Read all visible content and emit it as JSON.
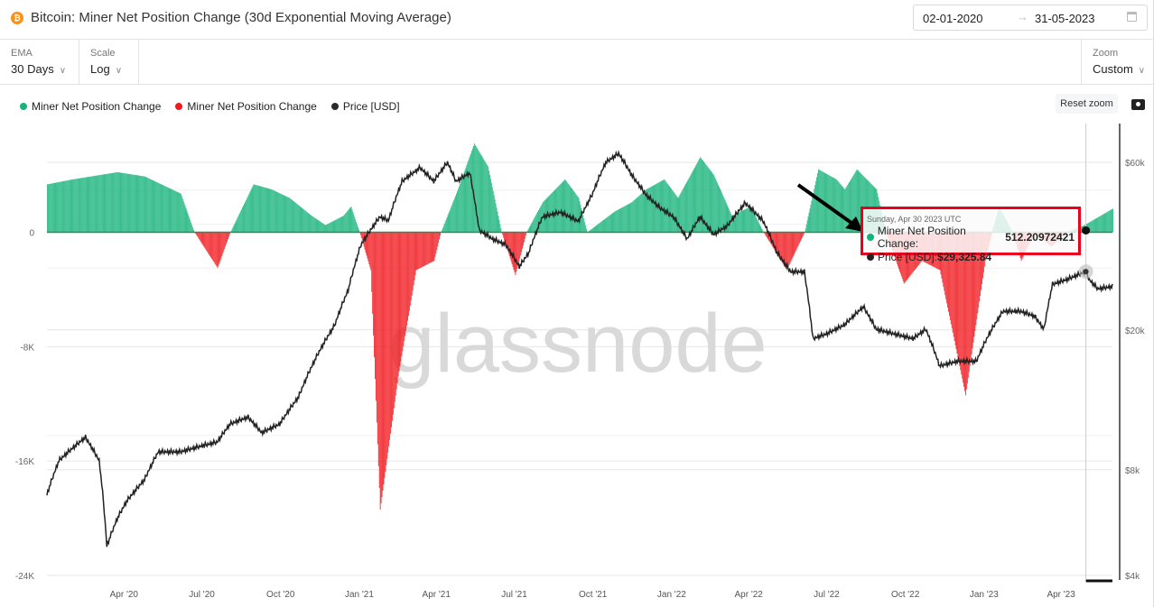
{
  "header": {
    "title": "Bitcoin: Miner Net Position Change (30d Exponential Moving Average)",
    "icon": "bitcoin-icon",
    "date_from": "02-01-2020",
    "date_arrow": "→",
    "date_to": "31-05-2023"
  },
  "controls": {
    "ema": {
      "label": "EMA",
      "value": "30 Days"
    },
    "scale": {
      "label": "Scale",
      "value": "Log"
    },
    "zoom": {
      "label": "Zoom",
      "value": "Custom"
    },
    "reset_zoom": "Reset zoom"
  },
  "legend": [
    {
      "label": "Miner Net Position Change",
      "color": "#16b37a"
    },
    {
      "label": "Miner Net Position Change",
      "color": "#f0191e"
    },
    {
      "label": "Price [USD]",
      "color": "#2b2b2b"
    }
  ],
  "watermark": "glassnode",
  "tooltip": {
    "date": "Sunday, Apr 30 2023 UTC",
    "series1_label": "Miner Net Position Change: ",
    "series1_value": "512.20972421",
    "series2_label": "Price [USD]: ",
    "series2_value": "$29,325.84"
  },
  "chart_data": {
    "type": "bar+line",
    "x_range": [
      "2020-01-02",
      "2023-05-31"
    ],
    "x_ticks": [
      {
        "date": "2020-04-01",
        "label": "Apr '20"
      },
      {
        "date": "2020-07-01",
        "label": "Jul '20"
      },
      {
        "date": "2020-10-01",
        "label": "Oct '20"
      },
      {
        "date": "2021-01-01",
        "label": "Jan '21"
      },
      {
        "date": "2021-04-01",
        "label": "Apr '21"
      },
      {
        "date": "2021-07-01",
        "label": "Jul '21"
      },
      {
        "date": "2021-10-01",
        "label": "Oct '21"
      },
      {
        "date": "2022-01-01",
        "label": "Jan '22"
      },
      {
        "date": "2022-04-01",
        "label": "Apr '22"
      },
      {
        "date": "2022-07-01",
        "label": "Jul '22"
      },
      {
        "date": "2022-10-01",
        "label": "Oct '22"
      },
      {
        "date": "2023-01-01",
        "label": "Jan '23"
      },
      {
        "date": "2023-04-01",
        "label": "Apr '23"
      }
    ],
    "left_axis": {
      "scale": "linear",
      "range": [
        -24000,
        7600
      ],
      "ticks": [
        {
          "v": 0,
          "label": "0"
        },
        {
          "v": -8000,
          "label": "-8K"
        },
        {
          "v": -16000,
          "label": "-16K"
        },
        {
          "v": -24000,
          "label": "-24K"
        }
      ]
    },
    "right_axis": {
      "scale": "log",
      "range": [
        4000,
        60000
      ],
      "ticks": [
        {
          "v": 60000,
          "label": "$60k"
        },
        {
          "v": 20000,
          "label": "$20k"
        },
        {
          "v": 8000,
          "label": "$8k"
        },
        {
          "v": 4000,
          "label": "$4k"
        }
      ]
    },
    "positive_color": "#16b37a",
    "negative_color": "#f0191e",
    "price_color": "#222222",
    "net_position_change": [
      [
        "2020-01-02",
        3350
      ],
      [
        "2020-02-01",
        3700
      ],
      [
        "2020-03-24",
        4200
      ],
      [
        "2020-04-25",
        3900
      ],
      [
        "2020-06-06",
        2700
      ],
      [
        "2020-06-22",
        0
      ],
      [
        "2020-07-19",
        -2500
      ],
      [
        "2020-08-03",
        0
      ],
      [
        "2020-08-30",
        3350
      ],
      [
        "2020-09-20",
        3000
      ],
      [
        "2020-10-11",
        2400
      ],
      [
        "2020-11-06",
        1150
      ],
      [
        "2020-11-22",
        500
      ],
      [
        "2020-12-13",
        1150
      ],
      [
        "2020-12-22",
        1800
      ],
      [
        "2021-01-01",
        0
      ],
      [
        "2021-01-14",
        -2650
      ],
      [
        "2021-01-25",
        -19400
      ],
      [
        "2021-02-15",
        -10100
      ],
      [
        "2021-03-08",
        -2650
      ],
      [
        "2021-03-29",
        -2000
      ],
      [
        "2021-04-06",
        0
      ],
      [
        "2021-04-24",
        2700
      ],
      [
        "2021-05-15",
        6200
      ],
      [
        "2021-05-31",
        4600
      ],
      [
        "2021-06-16",
        0
      ],
      [
        "2021-07-02",
        -3000
      ],
      [
        "2021-07-15",
        0
      ],
      [
        "2021-08-03",
        2100
      ],
      [
        "2021-08-29",
        3700
      ],
      [
        "2021-09-14",
        2400
      ],
      [
        "2021-09-24",
        0
      ],
      [
        "2021-10-05",
        500
      ],
      [
        "2021-10-26",
        1450
      ],
      [
        "2021-11-15",
        2100
      ],
      [
        "2021-12-02",
        3000
      ],
      [
        "2021-12-23",
        3700
      ],
      [
        "2022-01-08",
        2400
      ],
      [
        "2022-02-03",
        5250
      ],
      [
        "2022-02-19",
        4000
      ],
      [
        "2022-03-12",
        1150
      ],
      [
        "2022-04-03",
        1800
      ],
      [
        "2022-04-18",
        0
      ],
      [
        "2022-05-15",
        -2650
      ],
      [
        "2022-06-05",
        0
      ],
      [
        "2022-06-21",
        4400
      ],
      [
        "2022-07-12",
        3700
      ],
      [
        "2022-07-22",
        3000
      ],
      [
        "2022-08-05",
        4400
      ],
      [
        "2022-08-28",
        3000
      ],
      [
        "2022-09-08",
        0
      ],
      [
        "2022-09-29",
        -3600
      ],
      [
        "2022-10-20",
        -2000
      ],
      [
        "2022-11-10",
        -2650
      ],
      [
        "2022-12-10",
        -11400
      ],
      [
        "2023-01-02",
        -2000
      ],
      [
        "2023-01-10",
        0
      ],
      [
        "2023-01-18",
        1800
      ],
      [
        "2023-02-03",
        0
      ],
      [
        "2023-02-13",
        -2000
      ],
      [
        "2023-03-01",
        0
      ],
      [
        "2023-03-20",
        -1000
      ],
      [
        "2023-04-07",
        0
      ],
      [
        "2023-04-28",
        500
      ],
      [
        "2023-05-31",
        1650
      ]
    ],
    "price_usd": [
      [
        "2020-01-02",
        6800
      ],
      [
        "2020-01-16",
        8500
      ],
      [
        "2020-02-16",
        9900
      ],
      [
        "2020-03-03",
        8500
      ],
      [
        "2020-03-12",
        4850
      ],
      [
        "2020-03-24",
        5800
      ],
      [
        "2020-04-04",
        6500
      ],
      [
        "2020-04-25",
        7500
      ],
      [
        "2020-05-11",
        9000
      ],
      [
        "2020-06-06",
        9000
      ],
      [
        "2020-06-27",
        9300
      ],
      [
        "2020-07-19",
        9600
      ],
      [
        "2020-08-03",
        10800
      ],
      [
        "2020-08-24",
        11300
      ],
      [
        "2020-09-09",
        10200
      ],
      [
        "2020-09-30",
        10800
      ],
      [
        "2020-10-22",
        12900
      ],
      [
        "2020-11-12",
        16800
      ],
      [
        "2020-12-03",
        20600
      ],
      [
        "2020-12-19",
        26000
      ],
      [
        "2021-01-03",
        35000
      ],
      [
        "2021-01-25",
        42000
      ],
      [
        "2021-02-04",
        41000
      ],
      [
        "2021-02-20",
        53000
      ],
      [
        "2021-03-13",
        58000
      ],
      [
        "2021-03-29",
        53000
      ],
      [
        "2021-04-14",
        60000
      ],
      [
        "2021-04-24",
        53000
      ],
      [
        "2021-05-10",
        56000
      ],
      [
        "2021-05-21",
        38500
      ],
      [
        "2021-06-06",
        36300
      ],
      [
        "2021-06-21",
        35000
      ],
      [
        "2021-07-07",
        30300
      ],
      [
        "2021-07-18",
        33200
      ],
      [
        "2021-08-03",
        42000
      ],
      [
        "2021-08-24",
        43300
      ],
      [
        "2021-09-14",
        40800
      ],
      [
        "2021-09-30",
        48500
      ],
      [
        "2021-10-16",
        60000
      ],
      [
        "2021-10-31",
        63600
      ],
      [
        "2021-11-16",
        54900
      ],
      [
        "2021-12-02",
        48500
      ],
      [
        "2021-12-18",
        44600
      ],
      [
        "2022-01-03",
        42000
      ],
      [
        "2022-01-19",
        36300
      ],
      [
        "2022-02-03",
        42000
      ],
      [
        "2022-02-19",
        37400
      ],
      [
        "2022-03-07",
        39600
      ],
      [
        "2022-03-28",
        46000
      ],
      [
        "2022-04-18",
        40800
      ],
      [
        "2022-05-04",
        33200
      ],
      [
        "2022-05-20",
        29300
      ],
      [
        "2022-06-05",
        29300
      ],
      [
        "2022-06-15",
        18900
      ],
      [
        "2022-07-01",
        19500
      ],
      [
        "2022-07-22",
        20700
      ],
      [
        "2022-08-13",
        23300
      ],
      [
        "2022-08-28",
        20100
      ],
      [
        "2022-09-18",
        19500
      ],
      [
        "2022-10-10",
        18900
      ],
      [
        "2022-10-25",
        20100
      ],
      [
        "2022-11-10",
        15800
      ],
      [
        "2022-12-01",
        16300
      ],
      [
        "2022-12-23",
        16300
      ],
      [
        "2023-01-07",
        19500
      ],
      [
        "2023-01-23",
        22600
      ],
      [
        "2023-02-13",
        22600
      ],
      [
        "2023-03-01",
        21900
      ],
      [
        "2023-03-12",
        20100
      ],
      [
        "2023-03-22",
        27000
      ],
      [
        "2023-04-07",
        27800
      ],
      [
        "2023-04-30",
        29325.84
      ],
      [
        "2023-05-04",
        27800
      ],
      [
        "2023-05-14",
        26200
      ],
      [
        "2023-05-31",
        26600
      ]
    ],
    "highlighted_date": "2023-04-30"
  }
}
